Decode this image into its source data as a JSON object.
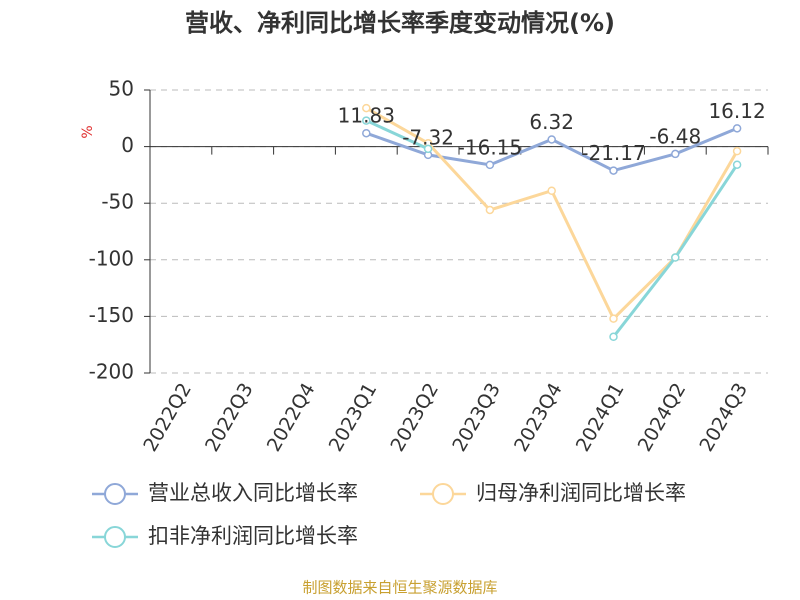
{
  "chart_data": {
    "type": "line",
    "title": "营收、净利同比增长率季度变动情况(%)",
    "y_label": "%",
    "source": "制图数据来自恒生聚源数据库",
    "categories": [
      "2022Q2",
      "2022Q3",
      "2022Q4",
      "2023Q1",
      "2023Q2",
      "2023Q3",
      "2023Q4",
      "2024Q1",
      "2024Q2",
      "2024Q3"
    ],
    "series": [
      {
        "name": "营业总收入同比增长率",
        "color": "#8fa8d8",
        "data_labels": true,
        "values": [
          null,
          null,
          null,
          11.83,
          -7.32,
          -16.15,
          6.32,
          -21.17,
          -6.48,
          16.12
        ]
      },
      {
        "name": "归母净利润同比增长率",
        "color": "#fcd79a",
        "data_labels": false,
        "values": [
          null,
          null,
          null,
          34,
          3,
          -56,
          -39,
          -152,
          -98,
          -4
        ]
      },
      {
        "name": "扣非净利润同比增长率",
        "color": "#88d6d8",
        "data_labels": false,
        "values": [
          null,
          null,
          null,
          23,
          -2,
          null,
          null,
          -168,
          -98,
          -16
        ]
      }
    ],
    "ylim": [
      -200,
      50
    ],
    "yticks": [
      -200,
      -150,
      -100,
      -50,
      0,
      50
    ],
    "grid": true
  }
}
